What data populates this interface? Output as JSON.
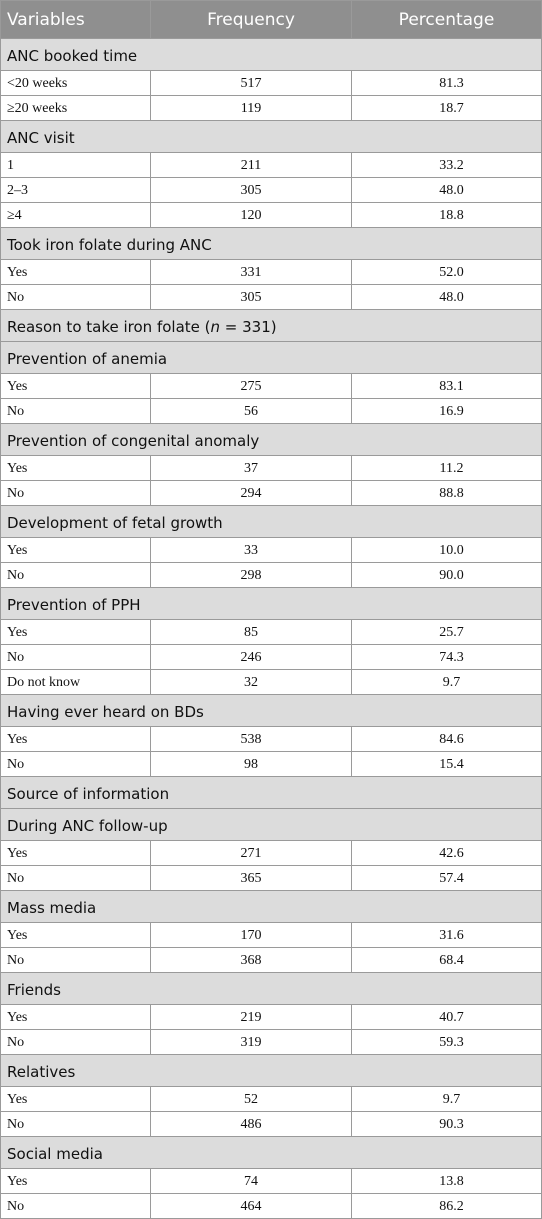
{
  "header": {
    "variables": "Variables",
    "frequency": "Frequency",
    "percentage": "Percentage"
  },
  "rows": [
    {
      "type": "section",
      "label": "ANC booked time"
    },
    {
      "type": "data",
      "label": "<20 weeks",
      "frequency": "517",
      "percentage": "81.3"
    },
    {
      "type": "data",
      "label": "≥20 weeks",
      "frequency": "119",
      "percentage": "18.7"
    },
    {
      "type": "section",
      "label": "ANC visit"
    },
    {
      "type": "data",
      "label": "1",
      "frequency": "211",
      "percentage": "33.2"
    },
    {
      "type": "data",
      "label": "2–3",
      "frequency": "305",
      "percentage": "48.0"
    },
    {
      "type": "data",
      "label": "≥4",
      "frequency": "120",
      "percentage": "18.8"
    },
    {
      "type": "section",
      "label": "Took iron folate during ANC"
    },
    {
      "type": "data",
      "label": "Yes",
      "frequency": "331",
      "percentage": "52.0"
    },
    {
      "type": "data",
      "label": "No",
      "frequency": "305",
      "percentage": "48.0"
    },
    {
      "type": "section",
      "label": "Reason to take iron folate (",
      "italic": "n",
      "after": " = 331)"
    },
    {
      "type": "section",
      "label": "Prevention of anemia"
    },
    {
      "type": "data",
      "label": "Yes",
      "frequency": "275",
      "percentage": "83.1"
    },
    {
      "type": "data",
      "label": "No",
      "frequency": "56",
      "percentage": "16.9"
    },
    {
      "type": "section",
      "label": "Prevention of congenital anomaly"
    },
    {
      "type": "data",
      "label": "Yes",
      "frequency": "37",
      "percentage": "11.2"
    },
    {
      "type": "data",
      "label": "No",
      "frequency": "294",
      "percentage": "88.8"
    },
    {
      "type": "section",
      "label": "Development of fetal growth"
    },
    {
      "type": "data",
      "label": "Yes",
      "frequency": "33",
      "percentage": "10.0"
    },
    {
      "type": "data",
      "label": "No",
      "frequency": "298",
      "percentage": "90.0"
    },
    {
      "type": "section",
      "label": "Prevention of PPH"
    },
    {
      "type": "data",
      "label": "Yes",
      "frequency": "85",
      "percentage": "25.7"
    },
    {
      "type": "data",
      "label": "No",
      "frequency": "246",
      "percentage": "74.3"
    },
    {
      "type": "data",
      "label": "Do not know",
      "frequency": "32",
      "percentage": "9.7"
    },
    {
      "type": "section",
      "label": "Having ever heard on BDs"
    },
    {
      "type": "data",
      "label": "Yes",
      "frequency": "538",
      "percentage": "84.6"
    },
    {
      "type": "data",
      "label": "No",
      "frequency": "98",
      "percentage": "15.4"
    },
    {
      "type": "section",
      "label": "Source of information"
    },
    {
      "type": "section",
      "label": "During ANC follow-up"
    },
    {
      "type": "data",
      "label": "Yes",
      "frequency": "271",
      "percentage": "42.6"
    },
    {
      "type": "data",
      "label": "No",
      "frequency": "365",
      "percentage": "57.4"
    },
    {
      "type": "section",
      "label": "Mass media"
    },
    {
      "type": "data",
      "label": "Yes",
      "frequency": "170",
      "percentage": "31.6"
    },
    {
      "type": "data",
      "label": "No",
      "frequency": "368",
      "percentage": "68.4"
    },
    {
      "type": "section",
      "label": "Friends"
    },
    {
      "type": "data",
      "label": "Yes",
      "frequency": "219",
      "percentage": "40.7"
    },
    {
      "type": "data",
      "label": "No",
      "frequency": "319",
      "percentage": "59.3"
    },
    {
      "type": "section",
      "label": "Relatives"
    },
    {
      "type": "data",
      "label": "Yes",
      "frequency": "52",
      "percentage": "9.7"
    },
    {
      "type": "data",
      "label": "No",
      "frequency": "486",
      "percentage": "90.3"
    },
    {
      "type": "section",
      "label": "Social media"
    },
    {
      "type": "data",
      "label": "Yes",
      "frequency": "74",
      "percentage": "13.8"
    },
    {
      "type": "data",
      "label": "No",
      "frequency": "464",
      "percentage": "86.2"
    }
  ]
}
